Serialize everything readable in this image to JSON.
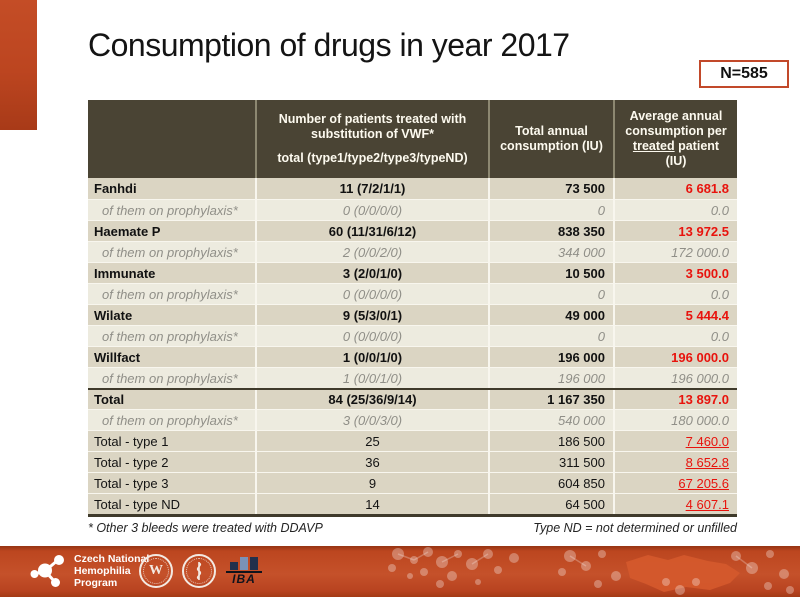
{
  "title": "Consumption of drugs in year 2017",
  "badge": "N=585",
  "table": {
    "header": {
      "patients_line1": "Number of patients treated with substitution of VWF*",
      "patients_line2": "total (type1/type2/type3/typeND)",
      "total_consumption": "Total annual consumption (IU)",
      "avg_pre": "Average annual consumption per",
      "avg_underlined": "treated",
      "avg_post": "patient (IU)"
    },
    "rows": [
      {
        "label": "Fanhdi",
        "patients": "11 (7/2/1/1)",
        "total": "73 500",
        "avg": "6 681.8",
        "variant": "main"
      },
      {
        "label": "of them on prophylaxis*",
        "patients": "0 (0/0/0/0)",
        "total": "0",
        "avg": "0.0",
        "variant": "sub"
      },
      {
        "label": "Haemate P",
        "patients": "60 (11/31/6/12)",
        "total": "838 350",
        "avg": "13 972.5",
        "variant": "main"
      },
      {
        "label": "of them on prophylaxis*",
        "patients": "2 (0/0/2/0)",
        "total": "344 000",
        "avg": "172 000.0",
        "variant": "sub"
      },
      {
        "label": "Immunate",
        "patients": "3 (2/0/1/0)",
        "total": "10 500",
        "avg": "3 500.0",
        "variant": "main"
      },
      {
        "label": "of them on prophylaxis*",
        "patients": "0 (0/0/0/0)",
        "total": "0",
        "avg": "0.0",
        "variant": "sub"
      },
      {
        "label": "Wilate",
        "patients": "9 (5/3/0/1)",
        "total": "49 000",
        "avg": "5 444.4",
        "variant": "main"
      },
      {
        "label": "of them on prophylaxis*",
        "patients": "0 (0/0/0/0)",
        "total": "0",
        "avg": "0.0",
        "variant": "sub"
      },
      {
        "label": "Willfact",
        "patients": "1 (0/0/1/0)",
        "total": "196 000",
        "avg": "196 000.0",
        "variant": "main"
      },
      {
        "label": "of them on prophylaxis*",
        "patients": "1 (0/0/1/0)",
        "total": "196 000",
        "avg": "196 000.0",
        "variant": "sub"
      },
      {
        "label": "Total",
        "patients": "84 (25/36/9/14)",
        "total": "1 167 350",
        "avg": "13 897.0",
        "variant": "main",
        "thick_top": true
      },
      {
        "label": "of them on prophylaxis*",
        "patients": "3 (0/0/3/0)",
        "total": "540 000",
        "avg": "180 000.0",
        "variant": "sub"
      },
      {
        "label": "Total - type 1",
        "patients": "25",
        "total": "186 500",
        "avg": "7 460.0",
        "variant": "type"
      },
      {
        "label": "Total - type 2",
        "patients": "36",
        "total": "311 500",
        "avg": "8 652.8",
        "variant": "type"
      },
      {
        "label": "Total - type 3",
        "patients": "9",
        "total": "604 850",
        "avg": "67 205.6",
        "variant": "type"
      },
      {
        "label": "Total - type ND",
        "patients": "14",
        "total": "64 500",
        "avg": "4 607.1",
        "variant": "type"
      }
    ]
  },
  "footnotes": {
    "left": "* Other 3 bleeds were treated with DDAVP",
    "right": "Type ND = not determined or unfilled"
  },
  "footer_bar": {
    "cnhp_lines": [
      "Czech National",
      "Hemophilia",
      "Program"
    ],
    "seal1_monogram": "W",
    "iba_label": "IBA"
  },
  "colors": {
    "accent_orange": "#C04A22",
    "value_red": "#E8130D",
    "header_bg": "#4A4434",
    "row_main_bg": "#DBD5C3",
    "row_sub_bg": "#EDEBDF",
    "badge_border": "#C2492A"
  }
}
